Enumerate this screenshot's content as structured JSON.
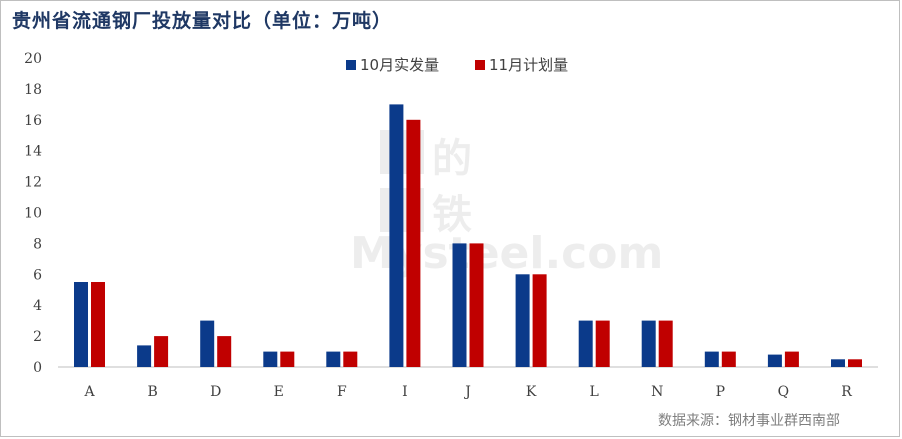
{
  "title": "贵州省流通钢厂投放量对比（单位：万吨）",
  "source": "数据来源：钢材事业群西南部",
  "watermark": {
    "text": "Mysteel.com",
    "glyph1": "的",
    "glyph2": "铁"
  },
  "colors": {
    "series1": "#0b3a8a",
    "series2": "#c00000",
    "axis": "#bfbfbf",
    "title": "#1f3864"
  },
  "chart_data": {
    "type": "bar",
    "categories": [
      "A",
      "B",
      "D",
      "E",
      "F",
      "I",
      "J",
      "K",
      "L",
      "N",
      "P",
      "Q",
      "R"
    ],
    "series": [
      {
        "name": "10月实发量",
        "values": [
          5.5,
          1.4,
          3.0,
          1.0,
          1.0,
          17.0,
          8.0,
          6.0,
          3.0,
          3.0,
          1.0,
          0.8,
          0.5
        ]
      },
      {
        "name": "11月计划量",
        "values": [
          5.5,
          2.0,
          2.0,
          1.0,
          1.0,
          16.0,
          8.0,
          6.0,
          3.0,
          3.0,
          1.0,
          1.0,
          0.5
        ]
      }
    ],
    "ylim": [
      0,
      20
    ],
    "yticks": [
      0,
      2,
      4,
      6,
      8,
      10,
      12,
      14,
      16,
      18,
      20
    ],
    "grid": false,
    "legend_position": "top-center"
  }
}
